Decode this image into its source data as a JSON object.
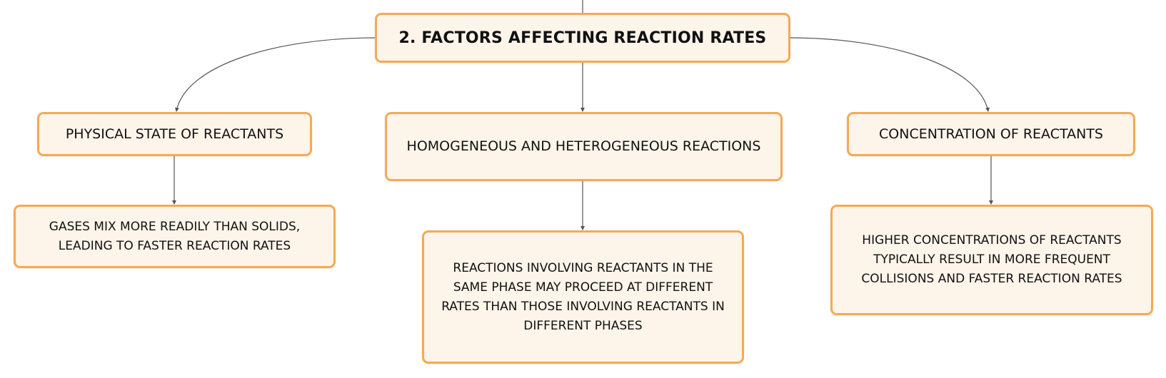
{
  "diagram": {
    "root": {
      "label": "2. FACTORS AFFECTING REACTION RATES"
    },
    "topics": [
      {
        "label": "PHYSICAL STATE OF REACTANTS",
        "detail": "GASES MIX MORE READILY THAN SOLIDS, LEADING TO FASTER REACTION RATES"
      },
      {
        "label": "HOMOGENEOUS AND HETEROGENEOUS REACTIONS",
        "detail": "REACTIONS INVOLVING REACTANTS IN THE SAME PHASE MAY PROCEED AT DIFFERENT RATES THAN THOSE INVOLVING REACTANTS IN DIFFERENT PHASES"
      },
      {
        "label": "CONCENTRATION OF REACTANTS",
        "detail": "HIGHER CONCENTRATIONS OF REACTANTS TYPICALLY RESULT IN MORE FREQUENT COLLISIONS AND FASTER REACTION RATES"
      }
    ]
  },
  "colors": {
    "node_fill": "#fdf4ea",
    "node_border": "#f2ab55",
    "connector": "#555555",
    "text": "#111111"
  }
}
